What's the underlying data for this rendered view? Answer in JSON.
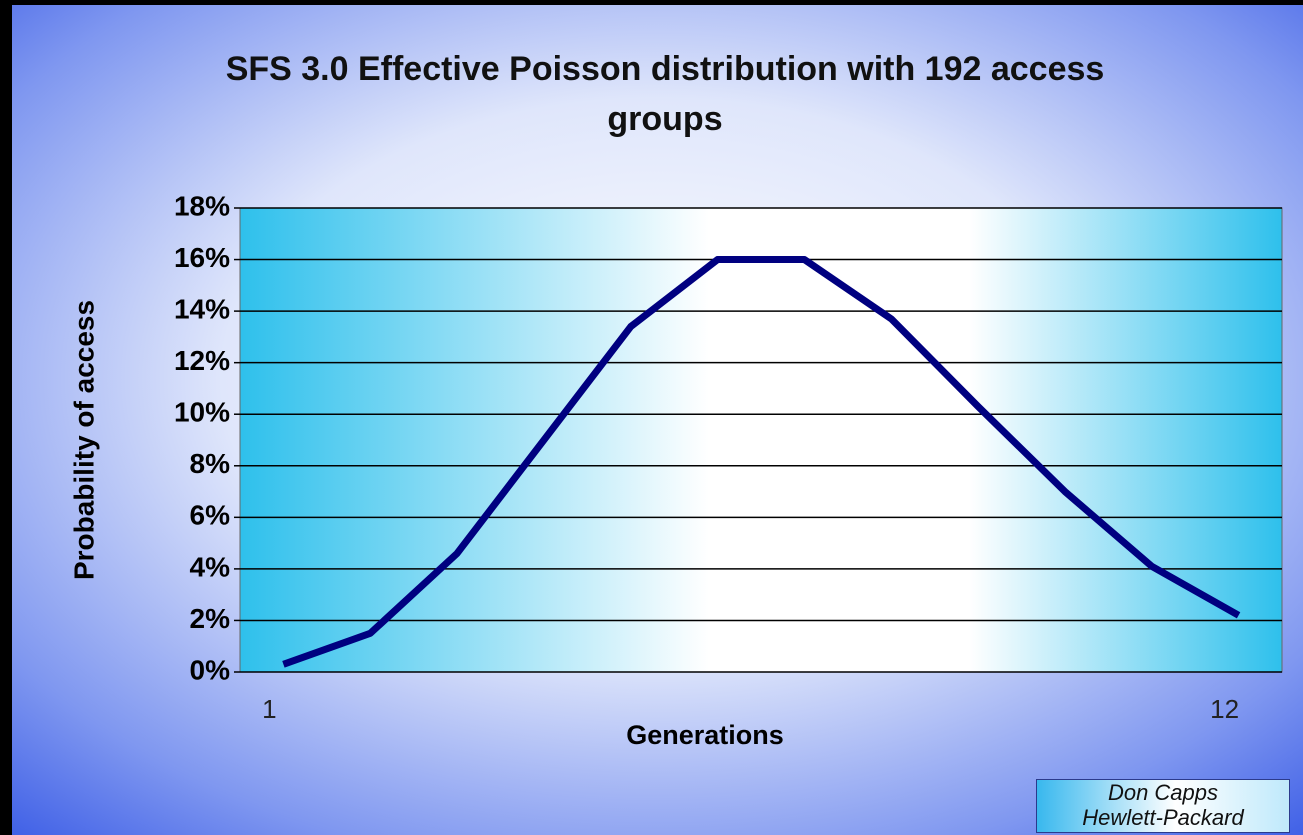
{
  "chart_data": {
    "type": "line",
    "title": "SFS 3.0 Effective Poisson distribution with 192 access groups",
    "xlabel": "Generations",
    "ylabel": "Probability of access",
    "categories": [
      "1",
      null,
      null,
      null,
      null,
      null,
      null,
      null,
      null,
      null,
      null,
      "12"
    ],
    "series": [
      {
        "name": "Probability of access",
        "color": "#000080",
        "values": [
          0.3,
          1.5,
          4.6,
          9.0,
          13.4,
          16.0,
          16.0,
          13.7,
          10.3,
          7.0,
          4.1,
          2.2
        ]
      }
    ],
    "ylim": [
      0,
      18
    ],
    "yticks": [
      {
        "value": 0,
        "label": "0%"
      },
      {
        "value": 2,
        "label": "2%"
      },
      {
        "value": 4,
        "label": "4%"
      },
      {
        "value": 6,
        "label": "6%"
      },
      {
        "value": 8,
        "label": "8%"
      },
      {
        "value": 10,
        "label": "10%"
      },
      {
        "value": 12,
        "label": "12%"
      },
      {
        "value": 14,
        "label": "14%"
      },
      {
        "value": 16,
        "label": "16%"
      },
      {
        "value": 18,
        "label": "18%"
      }
    ],
    "grid": true,
    "credit": [
      "Don Capps",
      "Hewlett-Packard"
    ]
  }
}
